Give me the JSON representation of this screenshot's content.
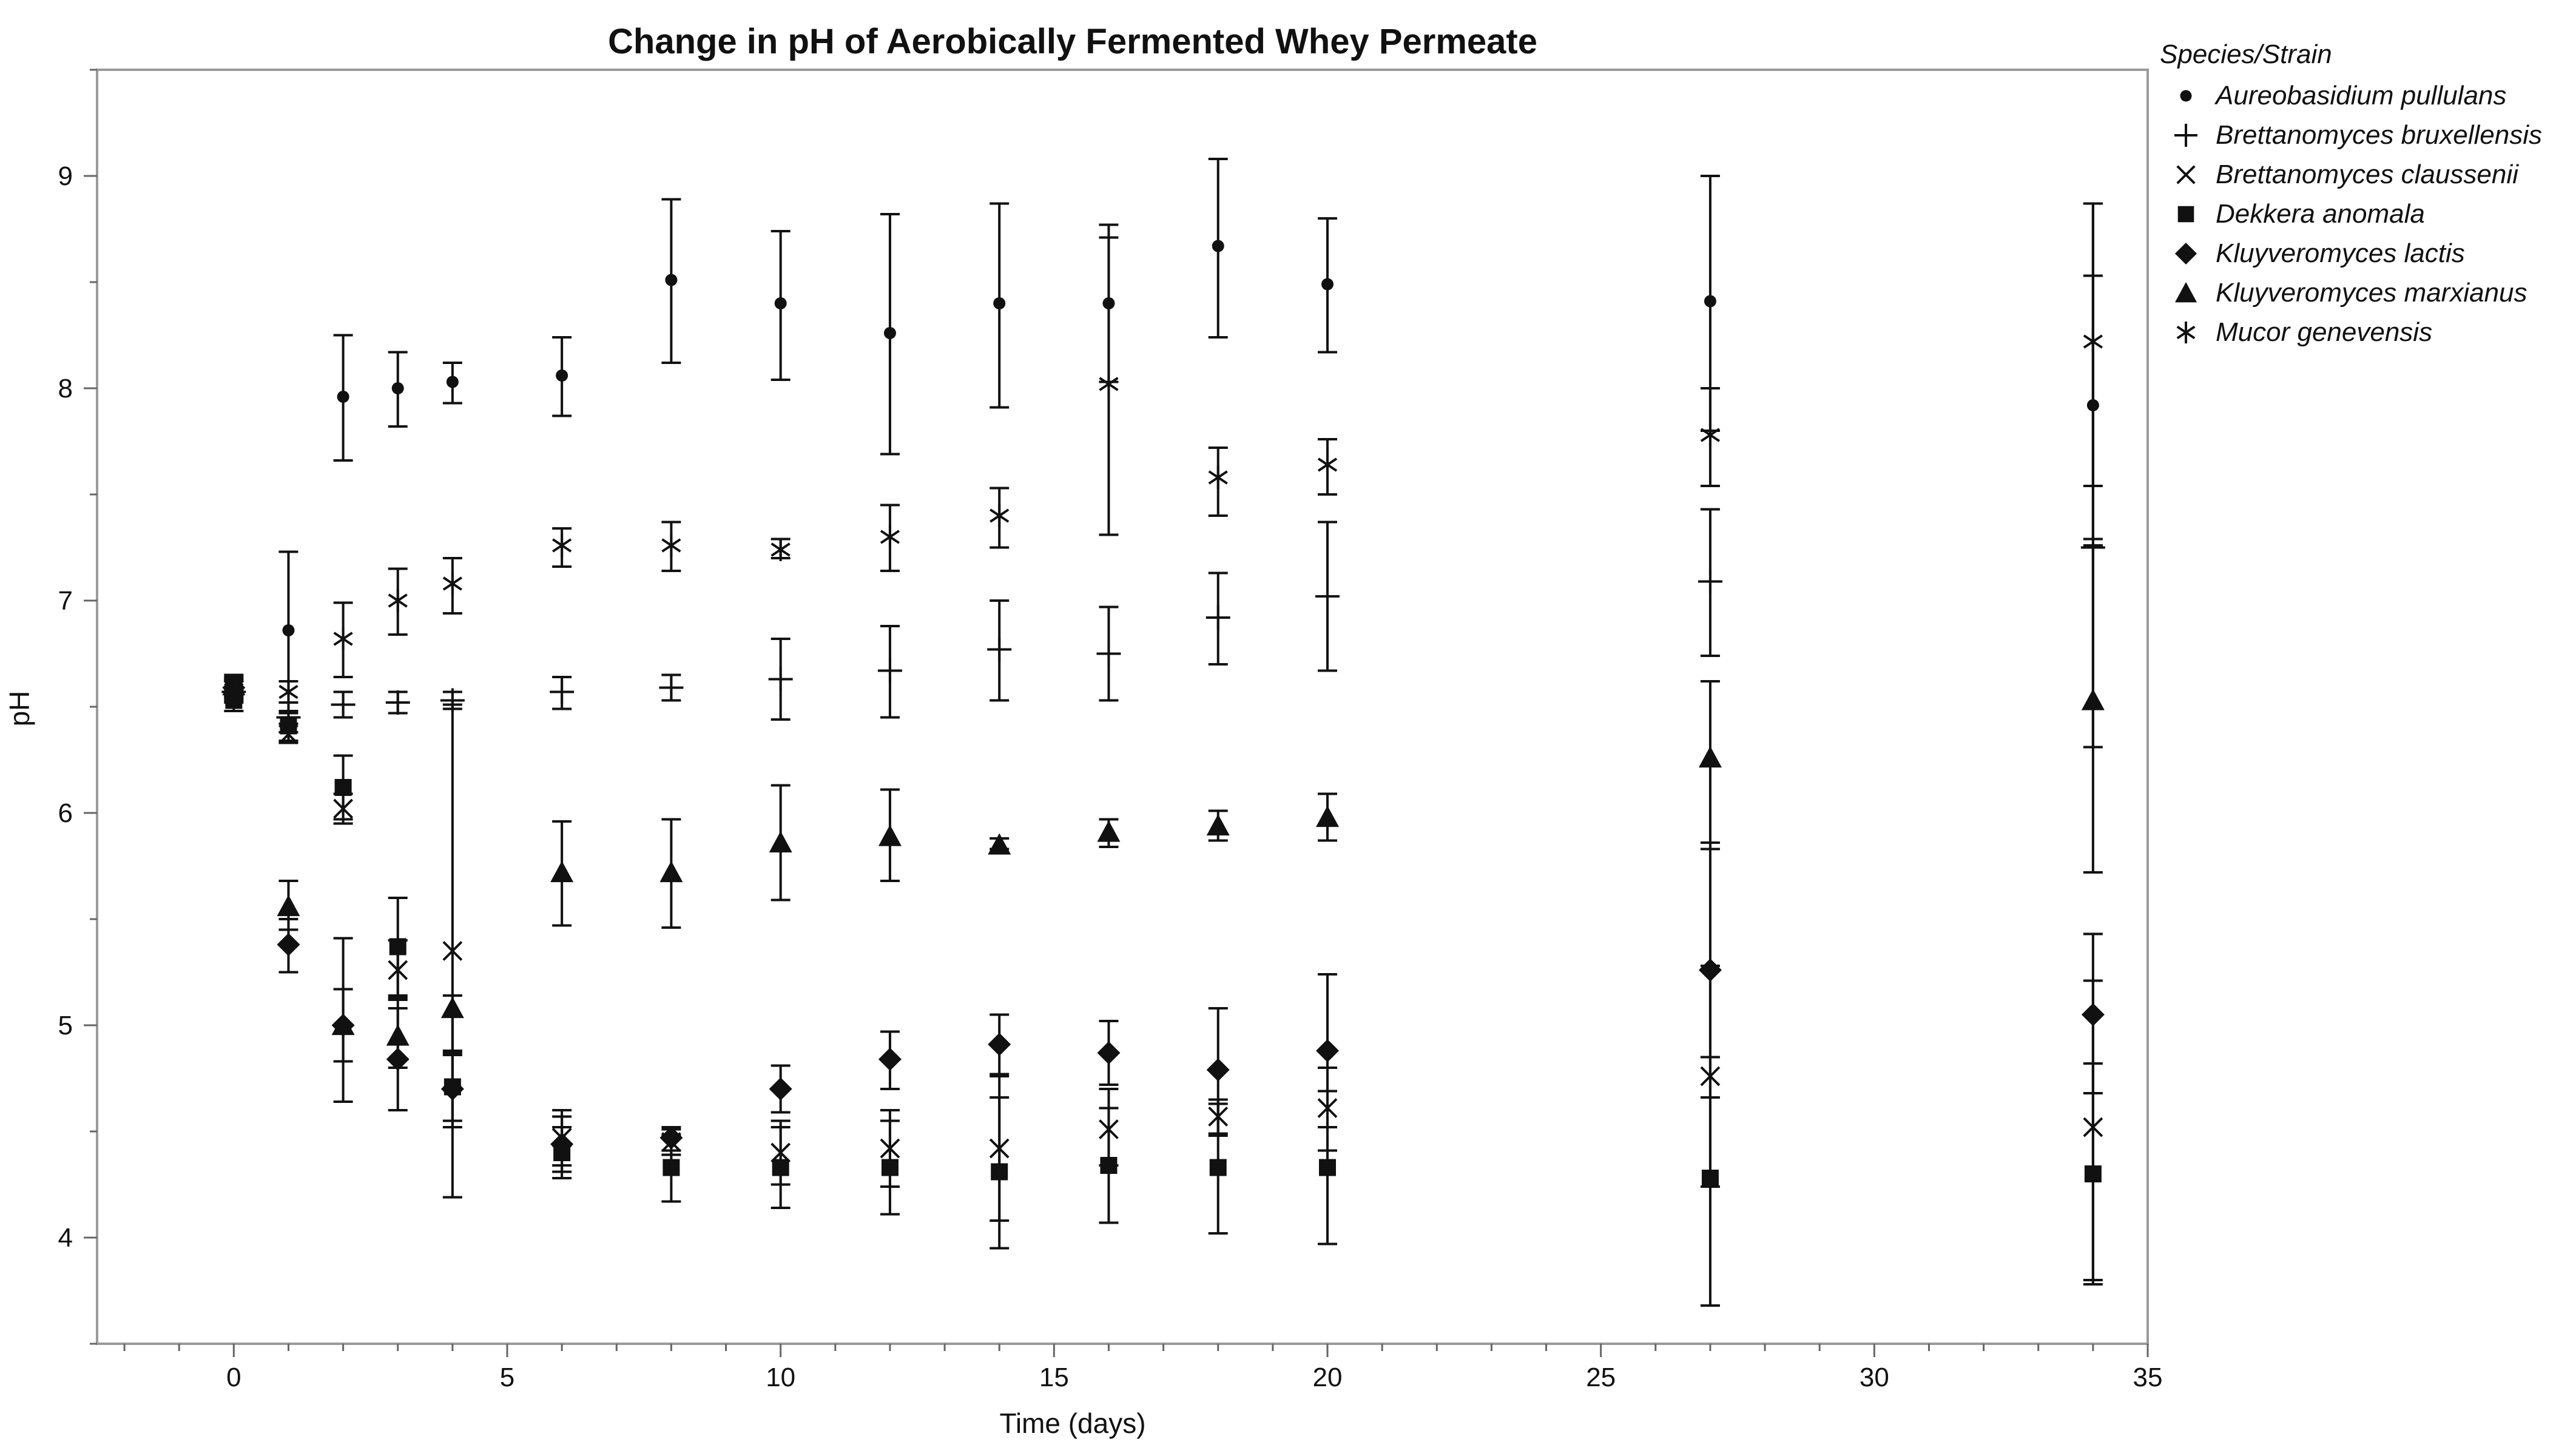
{
  "chart_data": {
    "type": "scatter",
    "title": "Change in pH of Aerobically Fermented Whey Permeate",
    "xlabel": "Time (days)",
    "ylabel": "pH",
    "xlim": [
      -2.5,
      35
    ],
    "ylim": [
      3.5,
      9.5
    ],
    "xticks": [
      0,
      5,
      10,
      15,
      20,
      25,
      30,
      35
    ],
    "yticks": [
      4,
      5,
      6,
      7,
      8,
      9
    ],
    "grid": false,
    "error_bars": true,
    "legend": {
      "title": "Species/Strain",
      "position": "right"
    },
    "series": [
      {
        "name": "Aureobasidium pullulans",
        "marker": "circle",
        "points": [
          {
            "x": 0,
            "y": 6.6,
            "lo": 6.55,
            "hi": 6.65
          },
          {
            "x": 1,
            "y": 6.86,
            "lo": 6.48,
            "hi": 7.23
          },
          {
            "x": 2,
            "y": 7.96,
            "lo": 7.66,
            "hi": 8.25
          },
          {
            "x": 3,
            "y": 8.0,
            "lo": 7.82,
            "hi": 8.17
          },
          {
            "x": 4,
            "y": 8.03,
            "lo": 7.93,
            "hi": 8.12
          },
          {
            "x": 6,
            "y": 8.06,
            "lo": 7.87,
            "hi": 8.24
          },
          {
            "x": 8,
            "y": 8.51,
            "lo": 8.12,
            "hi": 8.89
          },
          {
            "x": 10,
            "y": 8.4,
            "lo": 8.04,
            "hi": 8.74
          },
          {
            "x": 12,
            "y": 8.26,
            "lo": 7.69,
            "hi": 8.82
          },
          {
            "x": 14,
            "y": 8.4,
            "lo": 7.91,
            "hi": 8.87
          },
          {
            "x": 16,
            "y": 8.4,
            "lo": 8.03,
            "hi": 8.77
          },
          {
            "x": 18,
            "y": 8.67,
            "lo": 8.24,
            "hi": 9.08
          },
          {
            "x": 20,
            "y": 8.49,
            "lo": 8.17,
            "hi": 8.8
          },
          {
            "x": 27,
            "y": 8.41,
            "lo": 7.8,
            "hi": 9.0
          },
          {
            "x": 34,
            "y": 7.92,
            "lo": 7.29,
            "hi": 8.53
          }
        ]
      },
      {
        "name": "Brettanomyces bruxellensis",
        "marker": "plus",
        "points": [
          {
            "x": 0,
            "y": 6.57,
            "lo": 6.52,
            "hi": 6.62
          },
          {
            "x": 1,
            "y": 6.45,
            "lo": 6.38,
            "hi": 6.52
          },
          {
            "x": 2,
            "y": 6.51,
            "lo": 6.45,
            "hi": 6.57
          },
          {
            "x": 3,
            "y": 6.52,
            "lo": 6.47,
            "hi": 6.57
          },
          {
            "x": 4,
            "y": 6.53,
            "lo": 6.49,
            "hi": 6.57
          },
          {
            "x": 6,
            "y": 6.57,
            "lo": 6.49,
            "hi": 6.64
          },
          {
            "x": 8,
            "y": 6.59,
            "lo": 6.53,
            "hi": 6.65
          },
          {
            "x": 10,
            "y": 6.63,
            "lo": 6.44,
            "hi": 6.82
          },
          {
            "x": 12,
            "y": 6.67,
            "lo": 6.45,
            "hi": 6.88
          },
          {
            "x": 14,
            "y": 6.77,
            "lo": 6.53,
            "hi": 7.0
          },
          {
            "x": 16,
            "y": 6.75,
            "lo": 6.53,
            "hi": 6.97
          },
          {
            "x": 18,
            "y": 6.92,
            "lo": 6.7,
            "hi": 7.13
          },
          {
            "x": 20,
            "y": 7.02,
            "lo": 6.67,
            "hi": 7.37
          },
          {
            "x": 27,
            "y": 7.09,
            "lo": 6.74,
            "hi": 7.43
          },
          {
            "x": 34,
            "y": 7.25,
            "lo": 6.31,
            "hi": 8.87
          }
        ]
      },
      {
        "name": "Brettanomyces claussenii",
        "marker": "x",
        "points": [
          {
            "x": 0,
            "y": 6.58,
            "lo": 6.53,
            "hi": 6.63
          },
          {
            "x": 1,
            "y": 6.37,
            "lo": 6.33,
            "hi": 6.42
          },
          {
            "x": 2,
            "y": 6.02,
            "lo": 5.95,
            "hi": 6.09
          },
          {
            "x": 3,
            "y": 5.26,
            "lo": 5.13,
            "hi": 5.4
          },
          {
            "x": 4,
            "y": 5.35,
            "lo": 4.19,
            "hi": 6.51
          },
          {
            "x": 6,
            "y": 4.47,
            "lo": 4.34,
            "hi": 4.6
          },
          {
            "x": 8,
            "y": 4.45,
            "lo": 4.39,
            "hi": 4.51
          },
          {
            "x": 10,
            "y": 4.4,
            "lo": 4.25,
            "hi": 4.55
          },
          {
            "x": 12,
            "y": 4.42,
            "lo": 4.24,
            "hi": 4.6
          },
          {
            "x": 14,
            "y": 4.42,
            "lo": 4.08,
            "hi": 4.76
          },
          {
            "x": 16,
            "y": 4.51,
            "lo": 4.34,
            "hi": 4.7
          },
          {
            "x": 18,
            "y": 4.57,
            "lo": 4.48,
            "hi": 4.65
          },
          {
            "x": 20,
            "y": 4.61,
            "lo": 4.41,
            "hi": 4.8
          },
          {
            "x": 27,
            "y": 4.76,
            "lo": 4.24,
            "hi": 5.28
          },
          {
            "x": 34,
            "y": 4.52,
            "lo": 3.8,
            "hi": 5.21
          }
        ]
      },
      {
        "name": "Dekkera anomala",
        "marker": "square",
        "points": [
          {
            "x": 0,
            "y": 6.53,
            "lo": 6.48,
            "hi": 6.58
          },
          {
            "x": 1,
            "y": 6.41,
            "lo": 6.34,
            "hi": 6.47
          },
          {
            "x": 2,
            "y": 6.12,
            "lo": 5.97,
            "hi": 6.27
          },
          {
            "x": 3,
            "y": 5.37,
            "lo": 5.14,
            "hi": 5.6
          },
          {
            "x": 4,
            "y": 4.71,
            "lo": 4.55,
            "hi": 4.88
          },
          {
            "x": 6,
            "y": 4.4,
            "lo": 4.28,
            "hi": 4.52
          },
          {
            "x": 8,
            "y": 4.33,
            "lo": 4.17,
            "hi": 4.48
          },
          {
            "x": 10,
            "y": 4.33,
            "lo": 4.14,
            "hi": 4.52
          },
          {
            "x": 12,
            "y": 4.33,
            "lo": 4.11,
            "hi": 4.55
          },
          {
            "x": 14,
            "y": 4.31,
            "lo": 3.95,
            "hi": 4.66
          },
          {
            "x": 16,
            "y": 4.34,
            "lo": 4.07,
            "hi": 4.61
          },
          {
            "x": 18,
            "y": 4.33,
            "lo": 4.02,
            "hi": 4.63
          },
          {
            "x": 20,
            "y": 4.33,
            "lo": 3.97,
            "hi": 4.69
          },
          {
            "x": 27,
            "y": 4.28,
            "lo": 3.68,
            "hi": 4.85
          },
          {
            "x": 34,
            "y": 4.3,
            "lo": 3.78,
            "hi": 4.82
          }
        ]
      },
      {
        "name": "Kluyveromyces lactis",
        "marker": "diamond",
        "points": [
          {
            "x": 0,
            "y": 6.59,
            "lo": 6.55,
            "hi": 6.63
          },
          {
            "x": 1,
            "y": 5.38,
            "lo": 5.25,
            "hi": 5.5
          },
          {
            "x": 2,
            "y": 5.0,
            "lo": 4.64,
            "hi": 5.41
          },
          {
            "x": 3,
            "y": 4.84,
            "lo": 4.6,
            "hi": 5.08
          },
          {
            "x": 4,
            "y": 4.7,
            "lo": 4.52,
            "hi": 4.87
          },
          {
            "x": 6,
            "y": 4.44,
            "lo": 4.31,
            "hi": 4.57
          },
          {
            "x": 8,
            "y": 4.47,
            "lo": 4.41,
            "hi": 4.52
          },
          {
            "x": 10,
            "y": 4.7,
            "lo": 4.59,
            "hi": 4.81
          },
          {
            "x": 12,
            "y": 4.84,
            "lo": 4.7,
            "hi": 4.97
          },
          {
            "x": 14,
            "y": 4.91,
            "lo": 4.77,
            "hi": 5.05
          },
          {
            "x": 16,
            "y": 4.87,
            "lo": 4.72,
            "hi": 5.02
          },
          {
            "x": 18,
            "y": 4.79,
            "lo": 4.49,
            "hi": 5.08
          },
          {
            "x": 20,
            "y": 4.88,
            "lo": 4.52,
            "hi": 5.24
          },
          {
            "x": 27,
            "y": 5.26,
            "lo": 4.66,
            "hi": 5.86
          },
          {
            "x": 34,
            "y": 5.05,
            "lo": 4.68,
            "hi": 5.43
          }
        ]
      },
      {
        "name": "Kluyveromyces marxianus",
        "marker": "triangle",
        "points": [
          {
            "x": 0,
            "y": 6.6,
            "lo": 6.56,
            "hi": 6.64
          },
          {
            "x": 1,
            "y": 5.56,
            "lo": 5.45,
            "hi": 5.68
          },
          {
            "x": 2,
            "y": 5.0,
            "lo": 4.83,
            "hi": 5.17
          },
          {
            "x": 3,
            "y": 4.95,
            "lo": 4.8,
            "hi": 5.12
          },
          {
            "x": 4,
            "y": 5.08,
            "lo": 4.86,
            "hi": 5.14
          },
          {
            "x": 6,
            "y": 5.72,
            "lo": 5.47,
            "hi": 5.96
          },
          {
            "x": 8,
            "y": 5.72,
            "lo": 5.46,
            "hi": 5.97
          },
          {
            "x": 10,
            "y": 5.86,
            "lo": 5.59,
            "hi": 6.13
          },
          {
            "x": 12,
            "y": 5.89,
            "lo": 5.68,
            "hi": 6.11
          },
          {
            "x": 14,
            "y": 5.85,
            "lo": 5.83,
            "hi": 5.88
          },
          {
            "x": 16,
            "y": 5.91,
            "lo": 5.84,
            "hi": 5.97
          },
          {
            "x": 18,
            "y": 5.94,
            "lo": 5.87,
            "hi": 6.01
          },
          {
            "x": 20,
            "y": 5.98,
            "lo": 5.87,
            "hi": 6.09
          },
          {
            "x": 27,
            "y": 6.26,
            "lo": 5.83,
            "hi": 6.62
          },
          {
            "x": 34,
            "y": 6.53,
            "lo": 5.72,
            "hi": 7.26
          }
        ]
      },
      {
        "name": "Mucor genevensis",
        "marker": "asterisk",
        "points": [
          {
            "x": 0,
            "y": 6.58,
            "lo": 6.54,
            "hi": 6.62
          },
          {
            "x": 1,
            "y": 6.57,
            "lo": 6.52,
            "hi": 6.62
          },
          {
            "x": 2,
            "y": 6.82,
            "lo": 6.64,
            "hi": 6.99
          },
          {
            "x": 3,
            "y": 7.0,
            "lo": 6.84,
            "hi": 7.15
          },
          {
            "x": 4,
            "y": 7.08,
            "lo": 6.94,
            "hi": 7.2
          },
          {
            "x": 6,
            "y": 7.26,
            "lo": 7.16,
            "hi": 7.34
          },
          {
            "x": 8,
            "y": 7.26,
            "lo": 7.14,
            "hi": 7.37
          },
          {
            "x": 10,
            "y": 7.24,
            "lo": 7.2,
            "hi": 7.29
          },
          {
            "x": 12,
            "y": 7.3,
            "lo": 7.14,
            "hi": 7.45
          },
          {
            "x": 14,
            "y": 7.4,
            "lo": 7.25,
            "hi": 7.53
          },
          {
            "x": 16,
            "y": 8.02,
            "lo": 7.31,
            "hi": 8.71
          },
          {
            "x": 18,
            "y": 7.58,
            "lo": 7.4,
            "hi": 7.72
          },
          {
            "x": 20,
            "y": 7.64,
            "lo": 7.5,
            "hi": 7.76
          },
          {
            "x": 27,
            "y": 7.78,
            "lo": 7.54,
            "hi": 8.0
          },
          {
            "x": 34,
            "y": 8.22,
            "lo": 7.54,
            "hi": 8.87
          }
        ]
      }
    ]
  }
}
